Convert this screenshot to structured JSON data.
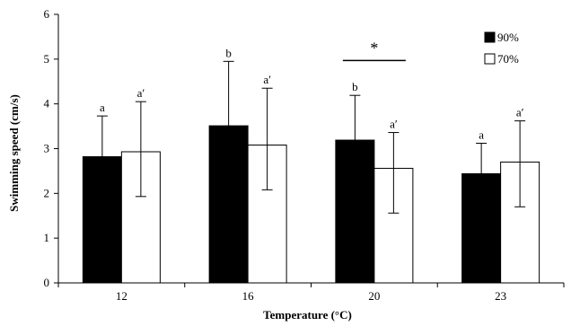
{
  "chart_data": {
    "type": "bar",
    "xlabel": "Temperature (°C)",
    "ylabel": "Swimming speed (cm/s)",
    "ylim": [
      0,
      6
    ],
    "yticks": [
      "0",
      "1",
      "2",
      "3",
      "4",
      "5",
      "6"
    ],
    "categories": [
      "12",
      "16",
      "20",
      "23"
    ],
    "grid": false,
    "legend_position": "top-right",
    "series": [
      {
        "name": "90%",
        "color": "#000000",
        "values": [
          2.82,
          3.51,
          3.19,
          2.44
        ],
        "error_upper": [
          3.73,
          4.95,
          4.19,
          3.12
        ],
        "error_lower": [
          2.82,
          3.51,
          3.19,
          2.44
        ],
        "letters": [
          "a",
          "b",
          "b",
          "a"
        ]
      },
      {
        "name": "70%",
        "color": "#ffffff",
        "values": [
          2.93,
          3.08,
          2.56,
          2.7
        ],
        "error_upper": [
          4.05,
          4.35,
          3.36,
          3.62
        ],
        "error_lower": [
          1.93,
          2.08,
          1.56,
          1.7
        ],
        "letters": [
          "a′",
          "a′",
          "a′",
          "a′"
        ]
      }
    ],
    "annotations": [
      {
        "text": "*",
        "category": "20",
        "y": 4.97
      }
    ]
  }
}
